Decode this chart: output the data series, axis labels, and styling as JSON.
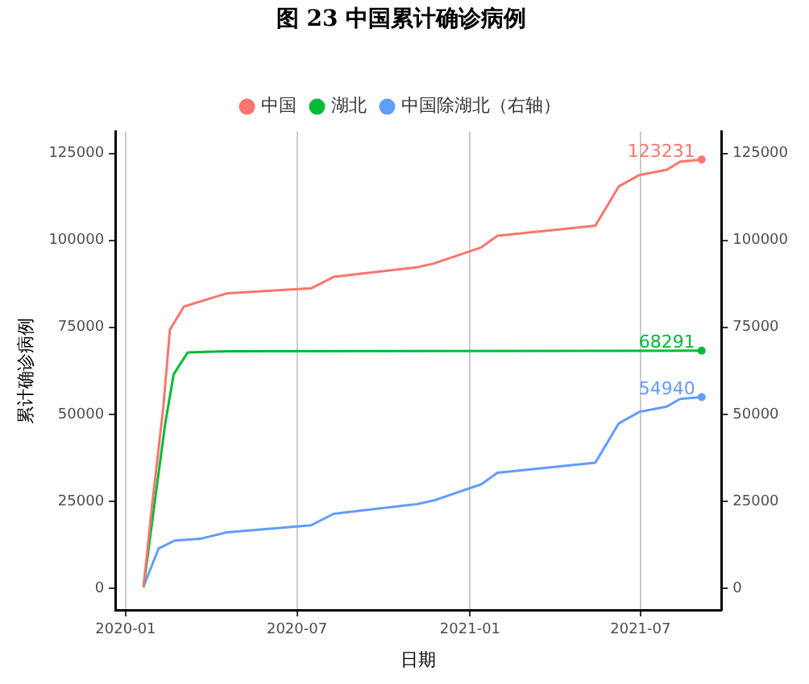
{
  "chart_data": {
    "type": "line",
    "title": "图 23 中国累计确诊病例",
    "xlabel": "日期",
    "ylabel": "累计确诊病例",
    "xlim": [
      "2019-12-21",
      "2021-09-25"
    ],
    "xticks": [
      {
        "value": "2020-01-01",
        "label": "2020-01"
      },
      {
        "value": "2020-07-01",
        "label": "2020-07"
      },
      {
        "value": "2021-01-01",
        "label": "2021-01"
      },
      {
        "value": "2021-07-01",
        "label": "2021-07"
      }
    ],
    "ylim": [
      -6250,
      131250
    ],
    "yticks": [
      0,
      25000,
      50000,
      75000,
      100000,
      125000
    ],
    "y2lim": [
      -6250,
      131250
    ],
    "y2ticks": [
      0,
      25000,
      50000,
      75000,
      100000,
      125000
    ],
    "grid": "x",
    "legend": "top",
    "line_style": "solid",
    "series": [
      {
        "name": "中国",
        "color": "#f8766d",
        "x": [
          "2020-01-20",
          "2020-01-29",
          "2020-02-10",
          "2020-02-17",
          "2020-03-03",
          "2020-04-18",
          "2020-07-16",
          "2020-08-09",
          "2020-11-06",
          "2020-11-23",
          "2021-01-13",
          "2021-01-30",
          "2021-05-14",
          "2021-06-08",
          "2021-06-30",
          "2021-07-29",
          "2021-08-12",
          "2021-09-04"
        ],
        "values": [
          500,
          23700,
          52000,
          74300,
          81000,
          84800,
          86200,
          89500,
          92300,
          93300,
          98000,
          101300,
          104200,
          115500,
          118800,
          120300,
          122600,
          123231
        ],
        "value_labels": [
          null,
          null,
          null,
          null,
          null,
          null,
          null,
          null,
          null,
          null,
          null,
          null,
          null,
          null,
          null,
          null,
          null,
          "123231"
        ]
      },
      {
        "name": "湖北",
        "color": "#00ba38",
        "x": [
          "2020-01-20",
          "2020-02-02",
          "2020-02-12",
          "2020-02-21",
          "2020-03-07",
          "2020-04-17",
          "2021-09-04"
        ],
        "values": [
          300,
          27000,
          47300,
          61500,
          67800,
          68100,
          68291
        ],
        "value_labels": [
          null,
          null,
          null,
          null,
          null,
          null,
          "68291"
        ]
      },
      {
        "name": "中国除湖北（右轴）",
        "color": "#619cff",
        "axis": "y2",
        "x": [
          "2020-01-20",
          "2020-02-05",
          "2020-02-22",
          "2020-03-20",
          "2020-04-18",
          "2020-07-16",
          "2020-08-09",
          "2020-11-06",
          "2020-11-23",
          "2021-01-13",
          "2021-01-30",
          "2021-05-14",
          "2021-06-08",
          "2021-06-30",
          "2021-07-29",
          "2021-08-12",
          "2021-09-04"
        ],
        "values": [
          500,
          11400,
          13700,
          14200,
          16100,
          18100,
          21400,
          24200,
          25200,
          29900,
          33200,
          36100,
          47400,
          50700,
          52200,
          54400,
          54940
        ],
        "value_labels": [
          null,
          null,
          null,
          null,
          null,
          null,
          null,
          null,
          null,
          null,
          null,
          null,
          null,
          null,
          null,
          null,
          "54940"
        ]
      }
    ]
  }
}
